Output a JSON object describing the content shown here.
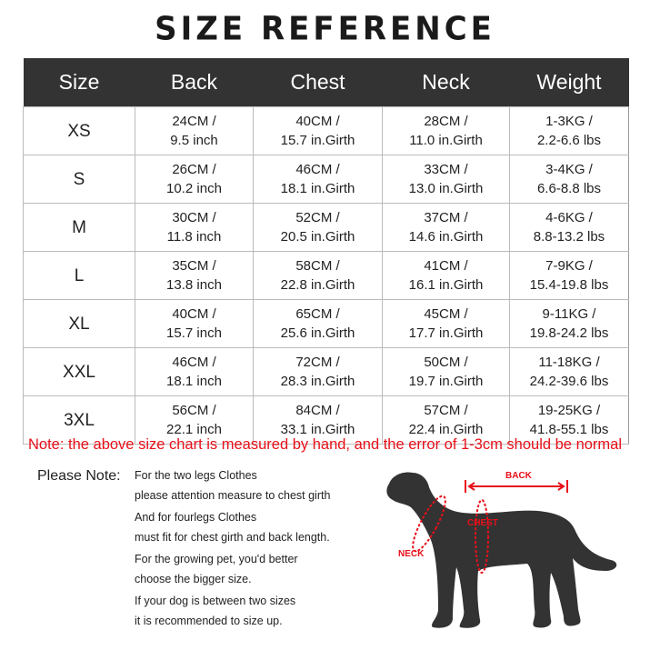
{
  "title": "SIZE REFERENCE",
  "table": {
    "headers": [
      "Size",
      "Back",
      "Chest",
      "Neck",
      "Weight"
    ],
    "rows": [
      {
        "size": "XS",
        "back": [
          "24CM /",
          "9.5 inch"
        ],
        "chest": [
          "40CM /",
          "15.7 in.Girth"
        ],
        "neck": [
          "28CM /",
          "11.0 in.Girth"
        ],
        "weight": [
          "1-3KG /",
          "2.2-6.6 lbs"
        ]
      },
      {
        "size": "S",
        "back": [
          "26CM /",
          "10.2 inch"
        ],
        "chest": [
          "46CM /",
          "18.1 in.Girth"
        ],
        "neck": [
          "33CM /",
          "13.0 in.Girth"
        ],
        "weight": [
          "3-4KG /",
          "6.6-8.8 lbs"
        ]
      },
      {
        "size": "M",
        "back": [
          "30CM /",
          "11.8 inch"
        ],
        "chest": [
          "52CM /",
          "20.5 in.Girth"
        ],
        "neck": [
          "37CM /",
          "14.6 in.Girth"
        ],
        "weight": [
          "4-6KG /",
          "8.8-13.2 lbs"
        ]
      },
      {
        "size": "L",
        "back": [
          "35CM /",
          "13.8 inch"
        ],
        "chest": [
          "58CM /",
          "22.8 in.Girth"
        ],
        "neck": [
          "41CM /",
          "16.1 in.Girth"
        ],
        "weight": [
          "7-9KG /",
          "15.4-19.8 lbs"
        ]
      },
      {
        "size": "XL",
        "back": [
          "40CM /",
          "15.7 inch"
        ],
        "chest": [
          "65CM /",
          "25.6 in.Girth"
        ],
        "neck": [
          "45CM /",
          "17.7 in.Girth"
        ],
        "weight": [
          "9-11KG /",
          "19.8-24.2 lbs"
        ]
      },
      {
        "size": "XXL",
        "back": [
          "46CM /",
          "18.1 inch"
        ],
        "chest": [
          "72CM /",
          "28.3 in.Girth"
        ],
        "neck": [
          "50CM /",
          "19.7 in.Girth"
        ],
        "weight": [
          "11-18KG /",
          "24.2-39.6 lbs"
        ]
      },
      {
        "size": "3XL",
        "back": [
          "56CM /",
          "22.1 inch"
        ],
        "chest": [
          "84CM /",
          "33.1 in.Girth"
        ],
        "neck": [
          "57CM /",
          "22.4 in.Girth"
        ],
        "weight": [
          "19-25KG /",
          "41.8-55.1 lbs"
        ]
      }
    ]
  },
  "red_note": "Note: the above size chart is measured by hand, and the error of 1-3cm should be normal",
  "please_note": {
    "label": "Please Note:",
    "lines": [
      "For the two legs Clothes",
      "please attention measure to chest girth",
      "And for fourlegs Clothes",
      "must fit for chest girth and back length.",
      "For the growing pet, you'd better",
      "choose the bigger size.",
      "If your dog is between two sizes",
      "it is recommended to size up."
    ]
  },
  "diagram": {
    "back": "BACK",
    "chest": "CHEST",
    "neck": "NECK",
    "accent": "#e8101a",
    "silhouette": "#333333"
  }
}
